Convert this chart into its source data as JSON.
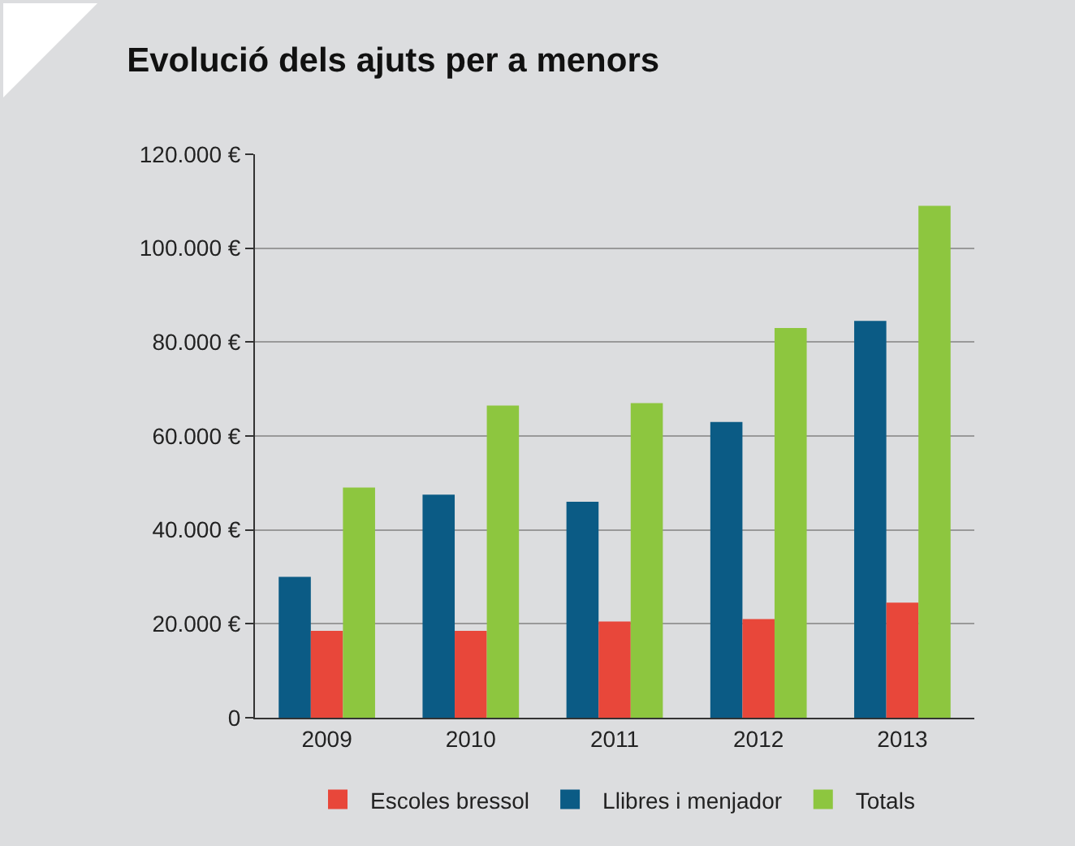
{
  "chart_data": {
    "type": "bar",
    "title": "Evolució dels ajuts per a menors",
    "categories": [
      "2009",
      "2010",
      "2011",
      "2012",
      "2013"
    ],
    "series": [
      {
        "name": "Llibres i menjador",
        "color": "#0b5b85",
        "values": [
          30000,
          47500,
          46000,
          63000,
          84500
        ]
      },
      {
        "name": "Escoles bressol",
        "color": "#e8473a",
        "values": [
          18500,
          18500,
          20500,
          21000,
          24500
        ]
      },
      {
        "name": "Totals",
        "color": "#8dc63f",
        "values": [
          49000,
          66500,
          67000,
          83000,
          109000
        ]
      }
    ],
    "ylim": [
      0,
      120000
    ],
    "yticks": [
      {
        "value": 0,
        "label": "0"
      },
      {
        "value": 20000,
        "label": "20.000 €"
      },
      {
        "value": 40000,
        "label": "40.000 €"
      },
      {
        "value": 60000,
        "label": "60.000 €"
      },
      {
        "value": 80000,
        "label": "80.000 €"
      },
      {
        "value": 100000,
        "label": "100.000 €"
      },
      {
        "value": 120000,
        "label": "120.000 €"
      }
    ],
    "grid": "y",
    "legend": "bottom"
  }
}
